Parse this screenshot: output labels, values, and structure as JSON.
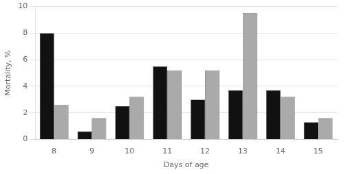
{
  "chart_data": {
    "type": "bar",
    "xlabel": "Days of age",
    "ylabel": "Mortality, %",
    "categories": [
      "8",
      "9",
      "10",
      "11",
      "12",
      "13",
      "14",
      "15"
    ],
    "series": [
      {
        "color": "#111111",
        "values": [
          8.0,
          0.6,
          2.5,
          5.5,
          3.0,
          3.7,
          3.7,
          1.3
        ]
      },
      {
        "color": "#aaaaaa",
        "values": [
          2.6,
          1.6,
          3.2,
          5.2,
          5.2,
          9.5,
          3.2,
          1.6
        ]
      }
    ],
    "ylim": [
      0,
      10
    ],
    "yticks": [
      0,
      2,
      4,
      6,
      8,
      10
    ],
    "grid": true
  }
}
